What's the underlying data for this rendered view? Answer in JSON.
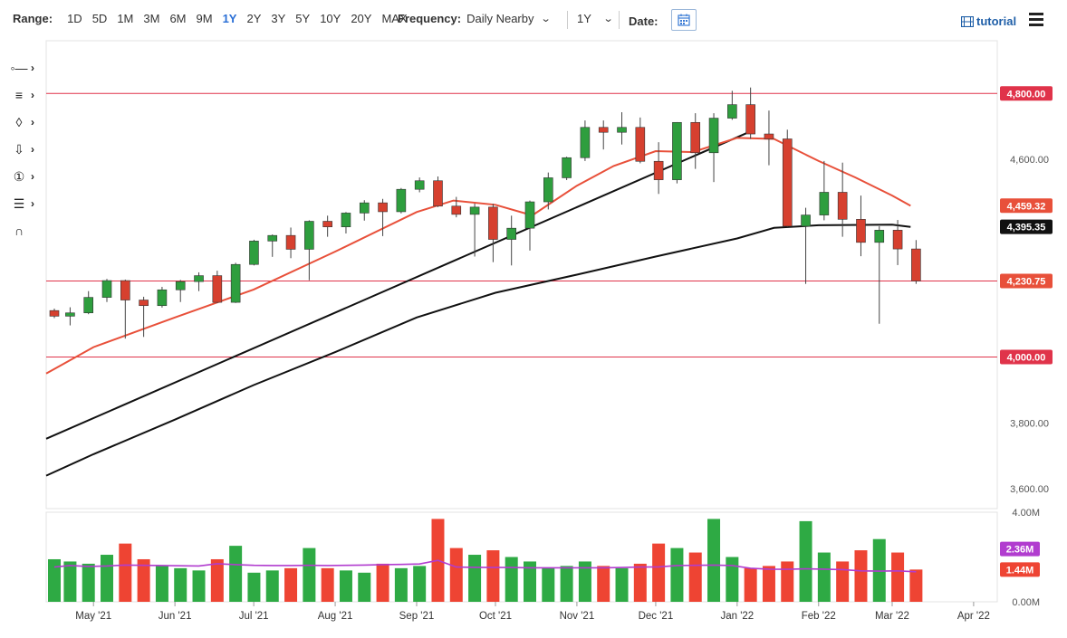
{
  "toolbar": {
    "range_label": "Range:",
    "ranges": [
      "1D",
      "5D",
      "1M",
      "3M",
      "6M",
      "9M",
      "1Y",
      "2Y",
      "3Y",
      "5Y",
      "10Y",
      "20Y",
      "MAX"
    ],
    "active_range": "1Y",
    "frequency_label": "Frequency:",
    "frequency_value": "Daily Nearby",
    "period_value": "1Y",
    "date_label": "Date:",
    "tutorial_label": "tutorial"
  },
  "tools": [
    {
      "icon": "line-tool-icon"
    },
    {
      "icon": "fibonacci-tool-icon"
    },
    {
      "icon": "shape-tool-icon"
    },
    {
      "icon": "arrow-tool-icon"
    },
    {
      "icon": "number-marker-icon"
    },
    {
      "icon": "indicator-tool-icon"
    },
    {
      "icon": "magnet-icon"
    }
  ],
  "chart_data": {
    "type": "candlestick",
    "price_axis": {
      "range": [
        3540,
        4960
      ],
      "ticks": [
        "4,600.00",
        "3,800.00",
        "3,600.00"
      ]
    },
    "volume_axis": {
      "range": [
        0,
        4000000
      ],
      "ticks": [
        "4.00M",
        "0.00M"
      ]
    },
    "x_ticks": [
      "May '21",
      "Jun '21",
      "Jul '21",
      "Aug '21",
      "Sep '21",
      "Oct '21",
      "Nov '21",
      "Dec '21",
      "Jan '22",
      "Feb '22",
      "Mar '22",
      "Apr '22"
    ],
    "x_tick_dates": [
      "2021-05-01",
      "2021-06-01",
      "2021-07-01",
      "2021-08-01",
      "2021-09-01",
      "2021-10-01",
      "2021-11-01",
      "2021-12-01",
      "2022-01-01",
      "2022-02-01",
      "2022-03-01",
      "2022-04-01"
    ],
    "date_range": [
      "2021-04-13",
      "2022-04-10"
    ],
    "horizontal_lines": [
      {
        "value": 4800.0,
        "label": "4,800.00",
        "color": "#e0334a"
      },
      {
        "value": 4230.75,
        "label": "4,230.75",
        "color": "#e0334a"
      },
      {
        "value": 4000.0,
        "label": "4,000.00",
        "color": "#e0334a"
      }
    ],
    "price_badges": [
      {
        "label": "4,459.32",
        "value": 4459.32,
        "color": "#e8503a",
        "series": "ma_fast"
      },
      {
        "label": "4,395.35",
        "value": 4395.35,
        "color": "#111111",
        "series": "ma_slow"
      },
      {
        "label": "4,230.75",
        "value": 4230.75,
        "color": "#e8503a",
        "series": "last"
      }
    ],
    "volume_badges": [
      {
        "label": "2.36M",
        "value": 2360000,
        "color": "#b13ccf"
      },
      {
        "label": "1.44M",
        "value": 1440000,
        "color": "#ee4433"
      }
    ],
    "trendlines": [
      {
        "from": [
          "2021-04-13",
          3752
        ],
        "to": [
          "2022-01-07",
          4688
        ],
        "color": "#111111"
      }
    ],
    "ma_fast": [
      [
        "2021-04-13",
        3950
      ],
      [
        "2021-05-01",
        4030
      ],
      [
        "2021-06-01",
        4120
      ],
      [
        "2021-07-01",
        4205
      ],
      [
        "2021-08-01",
        4320
      ],
      [
        "2021-09-01",
        4440
      ],
      [
        "2021-09-15",
        4475
      ],
      [
        "2021-10-01",
        4462
      ],
      [
        "2021-10-15",
        4430
      ],
      [
        "2021-11-01",
        4520
      ],
      [
        "2021-11-15",
        4580
      ],
      [
        "2021-12-01",
        4625
      ],
      [
        "2021-12-15",
        4622
      ],
      [
        "2022-01-01",
        4665
      ],
      [
        "2022-01-15",
        4662
      ],
      [
        "2022-02-01",
        4595
      ],
      [
        "2022-02-15",
        4545
      ],
      [
        "2022-03-01",
        4490
      ],
      [
        "2022-03-08",
        4459
      ]
    ],
    "ma_slow": [
      [
        "2021-04-13",
        3640
      ],
      [
        "2021-05-01",
        3705
      ],
      [
        "2021-06-01",
        3810
      ],
      [
        "2021-07-01",
        3915
      ],
      [
        "2021-08-01",
        4015
      ],
      [
        "2021-09-01",
        4120
      ],
      [
        "2021-10-01",
        4195
      ],
      [
        "2021-11-01",
        4250
      ],
      [
        "2021-12-01",
        4305
      ],
      [
        "2022-01-01",
        4360
      ],
      [
        "2022-01-15",
        4392
      ],
      [
        "2022-02-01",
        4400
      ],
      [
        "2022-03-01",
        4402
      ],
      [
        "2022-03-08",
        4395
      ]
    ],
    "candles": [
      [
        "2021-04-13",
        4141,
        4124,
        4147,
        4118
      ],
      [
        "2021-04-19",
        4124,
        4134,
        4151,
        4096
      ],
      [
        "2021-04-26",
        4134,
        4181,
        4200,
        4130
      ],
      [
        "2021-05-03",
        4181,
        4232,
        4237,
        4167
      ],
      [
        "2021-05-10",
        4232,
        4173,
        4235,
        4056
      ],
      [
        "2021-05-17",
        4173,
        4156,
        4183,
        4061
      ],
      [
        "2021-05-24",
        4156,
        4204,
        4213,
        4150
      ],
      [
        "2021-05-31",
        4204,
        4229,
        4234,
        4167
      ],
      [
        "2021-06-07",
        4229,
        4247,
        4257,
        4200
      ],
      [
        "2021-06-14",
        4247,
        4166,
        4262,
        4164
      ],
      [
        "2021-06-21",
        4166,
        4281,
        4286,
        4164
      ],
      [
        "2021-06-28",
        4281,
        4352,
        4356,
        4278
      ],
      [
        "2021-07-05",
        4352,
        4369,
        4372,
        4304
      ],
      [
        "2021-07-12",
        4369,
        4327,
        4393,
        4300
      ],
      [
        "2021-07-19",
        4327,
        4412,
        4415,
        4233
      ],
      [
        "2021-07-26",
        4412,
        4395,
        4429,
        4365
      ],
      [
        "2021-08-02",
        4395,
        4437,
        4440,
        4375
      ],
      [
        "2021-08-09",
        4437,
        4468,
        4476,
        4414
      ],
      [
        "2021-08-16",
        4468,
        4441,
        4480,
        4367
      ],
      [
        "2021-08-23",
        4441,
        4509,
        4513,
        4436
      ],
      [
        "2021-08-30",
        4509,
        4535,
        4545,
        4500
      ],
      [
        "2021-09-06",
        4535,
        4458,
        4548,
        4455
      ],
      [
        "2021-09-13",
        4458,
        4433,
        4486,
        4424
      ],
      [
        "2021-09-20",
        4433,
        4455,
        4466,
        4305
      ],
      [
        "2021-09-27",
        4455,
        4357,
        4465,
        4288
      ],
      [
        "2021-10-04",
        4357,
        4391,
        4429,
        4278
      ],
      [
        "2021-10-11",
        4391,
        4471,
        4475,
        4323
      ],
      [
        "2021-10-18",
        4471,
        4544,
        4560,
        4448
      ],
      [
        "2021-10-25",
        4544,
        4605,
        4608,
        4537
      ],
      [
        "2021-11-01",
        4605,
        4697,
        4718,
        4595
      ],
      [
        "2021-11-08",
        4697,
        4682,
        4718,
        4630
      ],
      [
        "2021-11-15",
        4682,
        4697,
        4743,
        4645
      ],
      [
        "2021-11-22",
        4697,
        4594,
        4727,
        4588
      ],
      [
        "2021-11-29",
        4594,
        4538,
        4652,
        4495
      ],
      [
        "2021-12-06",
        4538,
        4712,
        4713,
        4527
      ],
      [
        "2021-12-13",
        4712,
        4620,
        4740,
        4571
      ],
      [
        "2021-12-20",
        4620,
        4725,
        4740,
        4531
      ],
      [
        "2021-12-27",
        4725,
        4766,
        4808,
        4720
      ],
      [
        "2022-01-03",
        4766,
        4677,
        4818,
        4662
      ],
      [
        "2022-01-10",
        4677,
        4662,
        4748,
        4582
      ],
      [
        "2022-01-17",
        4662,
        4397,
        4690,
        4395
      ],
      [
        "2022-01-24",
        4397,
        4431,
        4453,
        4222
      ],
      [
        "2022-01-31",
        4431,
        4500,
        4595,
        4415
      ],
      [
        "2022-02-07",
        4500,
        4418,
        4590,
        4365
      ],
      [
        "2022-02-14",
        4418,
        4348,
        4490,
        4306
      ],
      [
        "2022-02-21",
        4348,
        4385,
        4397,
        4101
      ],
      [
        "2022-02-28",
        4385,
        4328,
        4416,
        4279
      ],
      [
        "2022-03-07",
        4328,
        4231,
        4355,
        4222
      ]
    ],
    "volume": [
      [
        "2021-04-13",
        1.9,
        1.55
      ],
      [
        "2021-04-19",
        1.8,
        1.62
      ],
      [
        "2021-04-26",
        1.7,
        1.58
      ],
      [
        "2021-05-03",
        2.1,
        1.6
      ],
      [
        "2021-05-10",
        2.6,
        1.64
      ],
      [
        "2021-05-17",
        1.9,
        1.63
      ],
      [
        "2021-05-24",
        1.6,
        1.62
      ],
      [
        "2021-05-31",
        1.5,
        1.61
      ],
      [
        "2021-06-07",
        1.4,
        1.6
      ],
      [
        "2021-06-14",
        1.9,
        1.7
      ],
      [
        "2021-06-21",
        2.5,
        1.66
      ],
      [
        "2021-06-28",
        1.3,
        1.63
      ],
      [
        "2021-07-05",
        1.4,
        1.62
      ],
      [
        "2021-07-12",
        1.5,
        1.62
      ],
      [
        "2021-07-19",
        2.4,
        1.63
      ],
      [
        "2021-07-26",
        1.5,
        1.62
      ],
      [
        "2021-08-02",
        1.4,
        1.63
      ],
      [
        "2021-08-09",
        1.3,
        1.64
      ],
      [
        "2021-08-16",
        1.7,
        1.66
      ],
      [
        "2021-08-23",
        1.5,
        1.67
      ],
      [
        "2021-08-30",
        1.6,
        1.69
      ],
      [
        "2021-09-06",
        3.7,
        1.85
      ],
      [
        "2021-09-13",
        2.4,
        1.55
      ],
      [
        "2021-09-20",
        2.1,
        1.54
      ],
      [
        "2021-09-27",
        2.3,
        1.53
      ],
      [
        "2021-10-04",
        2.0,
        1.53
      ],
      [
        "2021-10-11",
        1.8,
        1.52
      ],
      [
        "2021-10-18",
        1.5,
        1.52
      ],
      [
        "2021-10-25",
        1.6,
        1.52
      ],
      [
        "2021-11-01",
        1.8,
        1.52
      ],
      [
        "2021-11-08",
        1.6,
        1.52
      ],
      [
        "2021-11-15",
        1.5,
        1.53
      ],
      [
        "2021-11-22",
        1.7,
        1.55
      ],
      [
        "2021-11-29",
        2.6,
        1.56
      ],
      [
        "2021-12-06",
        2.4,
        1.62
      ],
      [
        "2021-12-13",
        2.2,
        1.63
      ],
      [
        "2021-12-20",
        3.7,
        1.64
      ],
      [
        "2021-12-27",
        2.0,
        1.62
      ],
      [
        "2022-01-03",
        1.5,
        1.5
      ],
      [
        "2022-01-10",
        1.6,
        1.46
      ],
      [
        "2022-01-17",
        1.8,
        1.45
      ],
      [
        "2022-01-24",
        3.6,
        1.47
      ],
      [
        "2022-01-31",
        2.2,
        1.46
      ],
      [
        "2022-02-07",
        1.8,
        1.44
      ],
      [
        "2022-02-14",
        2.3,
        1.38
      ],
      [
        "2022-02-21",
        2.8,
        1.37
      ],
      [
        "2022-02-28",
        2.2,
        1.38
      ],
      [
        "2022-03-07",
        1.44,
        1.34
      ]
    ]
  }
}
